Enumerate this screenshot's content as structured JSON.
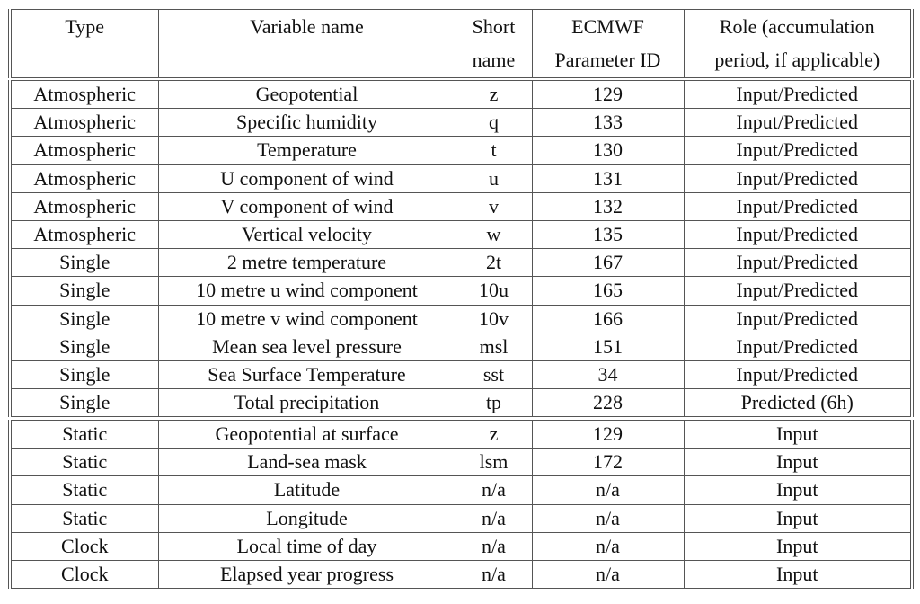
{
  "headers": [
    "Type",
    "Variable name",
    "Short\nname",
    "ECMWF\nParameter ID",
    "Role (accumulation\nperiod, if applicable)"
  ],
  "sections": [
    [
      [
        "Atmospheric",
        "Geopotential",
        "z",
        "129",
        "Input/Predicted"
      ],
      [
        "Atmospheric",
        "Specific humidity",
        "q",
        "133",
        "Input/Predicted"
      ],
      [
        "Atmospheric",
        "Temperature",
        "t",
        "130",
        "Input/Predicted"
      ],
      [
        "Atmospheric",
        "U component of wind",
        "u",
        "131",
        "Input/Predicted"
      ],
      [
        "Atmospheric",
        "V component of wind",
        "v",
        "132",
        "Input/Predicted"
      ],
      [
        "Atmospheric",
        "Vertical velocity",
        "w",
        "135",
        "Input/Predicted"
      ],
      [
        "Single",
        "2 metre temperature",
        "2t",
        "167",
        "Input/Predicted"
      ],
      [
        "Single",
        "10 metre u wind component",
        "10u",
        "165",
        "Input/Predicted"
      ],
      [
        "Single",
        "10 metre v wind component",
        "10v",
        "166",
        "Input/Predicted"
      ],
      [
        "Single",
        "Mean sea level pressure",
        "msl",
        "151",
        "Input/Predicted"
      ],
      [
        "Single",
        "Sea Surface Temperature",
        "sst",
        "34",
        "Input/Predicted"
      ],
      [
        "Single",
        "Total precipitation",
        "tp",
        "228",
        "Predicted (6h)"
      ]
    ],
    [
      [
        "Static",
        "Geopotential at surface",
        "z",
        "129",
        "Input"
      ],
      [
        "Static",
        "Land-sea mask",
        "lsm",
        "172",
        "Input"
      ],
      [
        "Static",
        "Latitude",
        "n/a",
        "n/a",
        "Input"
      ],
      [
        "Static",
        "Longitude",
        "n/a",
        "n/a",
        "Input"
      ],
      [
        "Clock",
        "Local time of day",
        "n/a",
        "n/a",
        "Input"
      ],
      [
        "Clock",
        "Elapsed year progress",
        "n/a",
        "n/a",
        "Input"
      ]
    ]
  ]
}
